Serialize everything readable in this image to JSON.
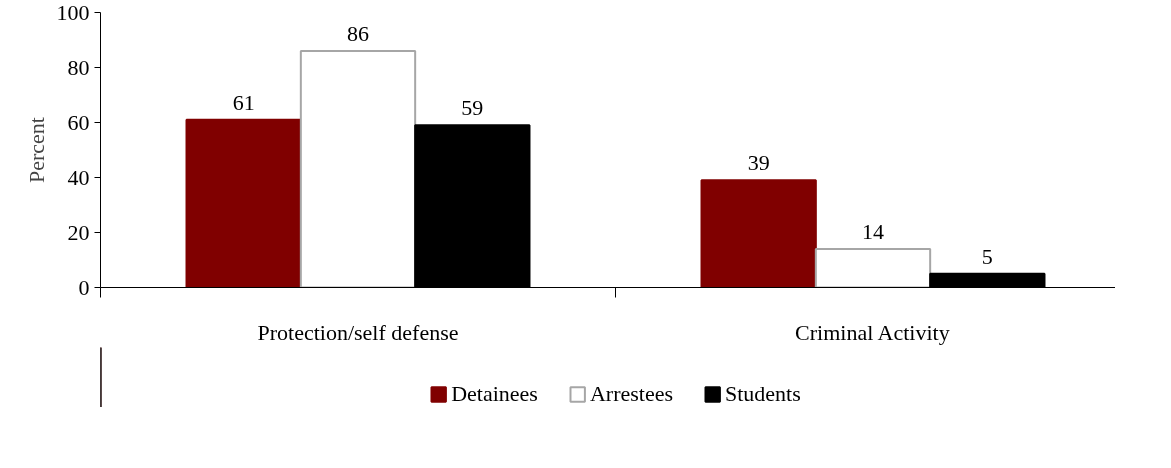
{
  "chart_data": {
    "type": "bar",
    "ylabel": "Percent",
    "categories": [
      "Protection/self defense",
      "Criminal Activity"
    ],
    "series": [
      {
        "name": "Detainees",
        "color": "#800000",
        "values": [
          61,
          39
        ]
      },
      {
        "name": "Arrestees",
        "color": "#ffffff",
        "values": [
          86,
          14
        ]
      },
      {
        "name": "Students",
        "color": "#000000",
        "values": [
          59,
          5
        ]
      }
    ],
    "ylim": [
      0,
      100
    ],
    "yticks": [
      0,
      20,
      40,
      60,
      80,
      100
    ],
    "grid": false,
    "legend": "bottom",
    "data_labels": true
  }
}
